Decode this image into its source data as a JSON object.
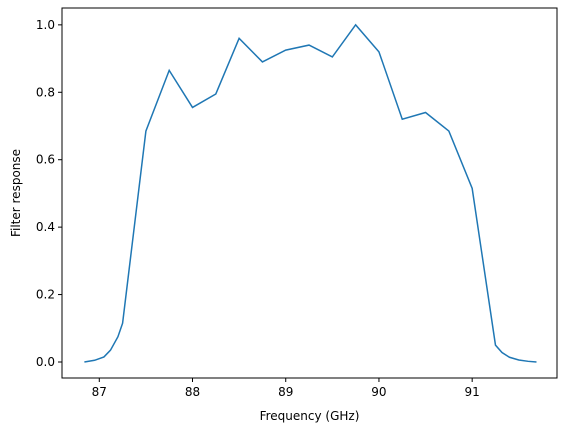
{
  "chart_data": {
    "type": "line",
    "x_label": "Frequency (GHz)",
    "y_label": "Filter response",
    "x": [
      86.84,
      86.95,
      87.05,
      87.12,
      87.2,
      87.25,
      87.5,
      87.75,
      88.0,
      88.25,
      88.5,
      88.75,
      89.0,
      89.25,
      89.5,
      89.75,
      90.0,
      90.25,
      90.5,
      90.75,
      91.0,
      91.25,
      91.32,
      91.4,
      91.5,
      91.6,
      91.69
    ],
    "series": [
      {
        "color": "#1f77b4",
        "values": [
          0.0,
          0.005,
          0.015,
          0.035,
          0.075,
          0.115,
          0.685,
          0.865,
          0.755,
          0.795,
          0.96,
          0.89,
          0.925,
          0.94,
          0.905,
          1.0,
          0.92,
          0.72,
          0.74,
          0.685,
          0.515,
          0.05,
          0.028,
          0.014,
          0.006,
          0.002,
          0.0
        ]
      }
    ],
    "xlim": [
      86.6,
      91.91
    ],
    "ylim": [
      -0.0475,
      1.05
    ],
    "xticks": [
      87,
      88,
      89,
      90,
      91
    ],
    "yticks": [
      {
        "value": 0,
        "label": "0.0"
      },
      {
        "value": 0.2,
        "label": "0.2"
      },
      {
        "value": 0.4,
        "label": "0.4"
      },
      {
        "value": 0.6,
        "label": "0.6"
      },
      {
        "value": 0.8,
        "label": "0.8"
      },
      {
        "value": 1,
        "label": "1.0"
      }
    ]
  }
}
